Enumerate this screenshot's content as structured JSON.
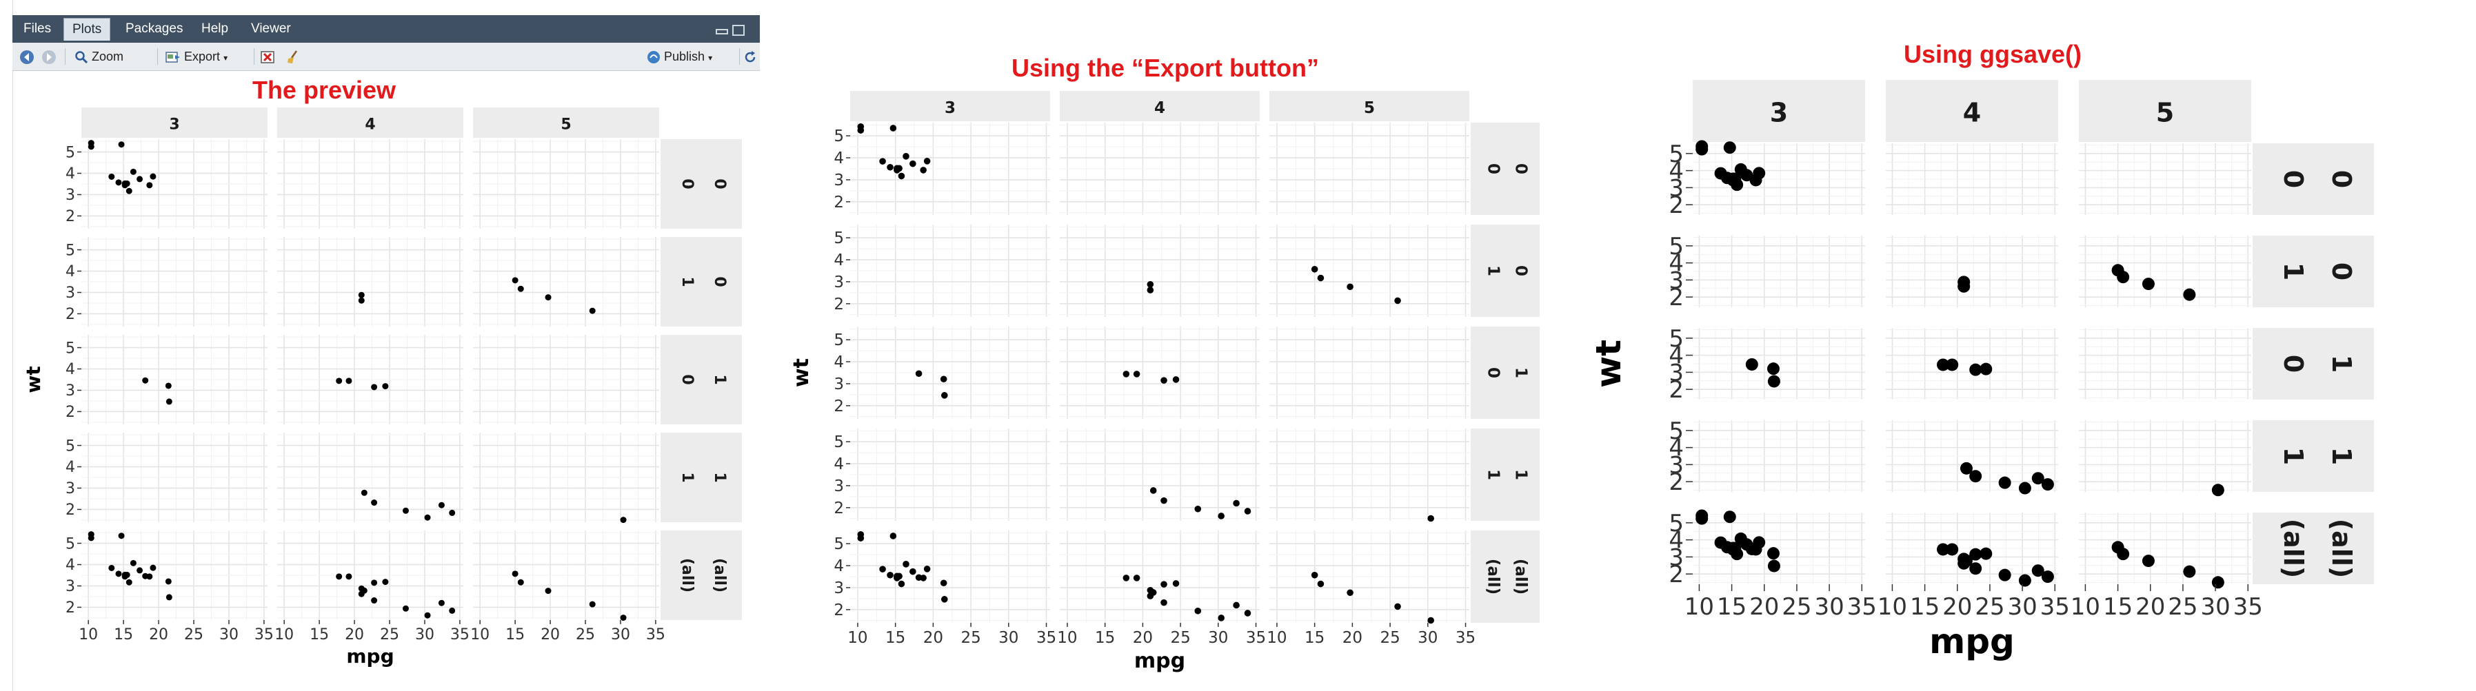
{
  "rstudio": {
    "tabs": [
      {
        "label": "Files"
      },
      {
        "label": "Plots"
      },
      {
        "label": "Packages"
      },
      {
        "label": "Help"
      },
      {
        "label": "Viewer"
      }
    ],
    "active_tab": "Plots",
    "toolbar": {
      "zoom_label": "Zoom",
      "export_label": "Export",
      "publish_label": "Publish"
    }
  },
  "labels": {
    "preview_title": "The preview",
    "export_title": "Using the “Export button”",
    "ggsave_title": "Using ggsave()"
  },
  "chart_data": [
    {
      "type": "scatter",
      "title": "The preview",
      "xlabel": "mpg",
      "ylabel": "wt",
      "xlim": [
        9,
        35.5
      ],
      "ylim": [
        1.4,
        5.6
      ],
      "xticks": [
        10,
        15,
        20,
        25,
        30,
        35
      ],
      "yticks": [
        2,
        3,
        4,
        5
      ],
      "col_strips": [
        "3",
        "4",
        "5"
      ],
      "row_strips": [
        [
          "0",
          "0"
        ],
        [
          "1",
          "0"
        ],
        [
          "0",
          "1"
        ],
        [
          "1",
          "1"
        ],
        [
          "(all)",
          "(all)"
        ]
      ],
      "panels": [
        [
          [
            [
              10.4,
              5.25
            ],
            [
              10.4,
              5.42
            ],
            [
              14.7,
              5.35
            ],
            [
              13.3,
              3.84
            ],
            [
              14.3,
              3.57
            ],
            [
              15.2,
              3.44
            ],
            [
              15.2,
              3.52
            ],
            [
              16.4,
              4.07
            ],
            [
              17.3,
              3.73
            ],
            [
              18.7,
              3.44
            ],
            [
              19.2,
              3.85
            ],
            [
              15.5,
              3.52
            ],
            [
              15.8,
              3.17
            ]
          ],
          [],
          []
        ],
        [
          [],
          [
            [
              21.0,
              2.62
            ],
            [
              21.0,
              2.88
            ]
          ],
          [
            [
              15.0,
              3.57
            ],
            [
              15.8,
              3.17
            ],
            [
              19.7,
              2.77
            ],
            [
              26.0,
              2.14
            ]
          ]
        ],
        [
          [
            [
              18.1,
              3.46
            ],
            [
              21.4,
              3.21
            ],
            [
              21.5,
              2.47
            ]
          ],
          [
            [
              17.8,
              3.44
            ],
            [
              19.2,
              3.44
            ],
            [
              22.8,
              3.15
            ],
            [
              24.4,
              3.19
            ]
          ],
          []
        ],
        [
          [],
          [
            [
              21.4,
              2.78
            ],
            [
              22.8,
              2.32
            ],
            [
              27.3,
              1.94
            ],
            [
              30.4,
              1.62
            ],
            [
              32.4,
              2.2
            ],
            [
              33.9,
              1.84
            ]
          ],
          [
            [
              30.4,
              1.51
            ]
          ]
        ],
        [
          [
            [
              10.4,
              5.25
            ],
            [
              10.4,
              5.42
            ],
            [
              14.7,
              5.35
            ],
            [
              13.3,
              3.84
            ],
            [
              14.3,
              3.57
            ],
            [
              15.2,
              3.44
            ],
            [
              15.2,
              3.52
            ],
            [
              16.4,
              4.07
            ],
            [
              17.3,
              3.73
            ],
            [
              18.7,
              3.44
            ],
            [
              19.2,
              3.85
            ],
            [
              15.5,
              3.52
            ],
            [
              15.8,
              3.17
            ],
            [
              18.1,
              3.46
            ],
            [
              21.4,
              3.21
            ],
            [
              21.5,
              2.47
            ]
          ],
          [
            [
              21.0,
              2.62
            ],
            [
              21.0,
              2.88
            ],
            [
              17.8,
              3.44
            ],
            [
              19.2,
              3.44
            ],
            [
              22.8,
              3.15
            ],
            [
              24.4,
              3.19
            ],
            [
              21.4,
              2.78
            ],
            [
              22.8,
              2.32
            ],
            [
              27.3,
              1.94
            ],
            [
              30.4,
              1.62
            ],
            [
              32.4,
              2.2
            ],
            [
              33.9,
              1.84
            ]
          ],
          [
            [
              15.0,
              3.57
            ],
            [
              15.8,
              3.17
            ],
            [
              19.7,
              2.77
            ],
            [
              26.0,
              2.14
            ],
            [
              30.4,
              1.51
            ]
          ]
        ]
      ]
    },
    {
      "type": "scatter",
      "title": "Using the “Export button”",
      "xlabel": "mpg",
      "ylabel": "wt",
      "same_data_as": "preview",
      "xticks": [
        10,
        15,
        20,
        25,
        30,
        35
      ],
      "yticks": [
        2,
        3,
        4,
        5
      ],
      "col_strips": [
        "3",
        "4",
        "5"
      ],
      "row_strips": [
        [
          "0",
          "0"
        ],
        [
          "1",
          "0"
        ],
        [
          "0",
          "1"
        ],
        [
          "1",
          "1"
        ],
        [
          "(all)",
          "(all)"
        ]
      ]
    },
    {
      "type": "scatter",
      "title": "Using ggsave()",
      "xlabel": "mpg",
      "ylabel": "wt",
      "same_data_as": "preview",
      "xticks": [
        10,
        15,
        20,
        25,
        30,
        35
      ],
      "yticks": [
        2,
        3,
        4,
        5
      ],
      "col_strips": [
        "3",
        "4",
        "5"
      ],
      "row_strips": [
        [
          "0",
          "0"
        ],
        [
          "1",
          "0"
        ],
        [
          "0",
          "1"
        ],
        [
          "1",
          "1"
        ],
        [
          "(all)",
          "(all)"
        ]
      ]
    }
  ]
}
